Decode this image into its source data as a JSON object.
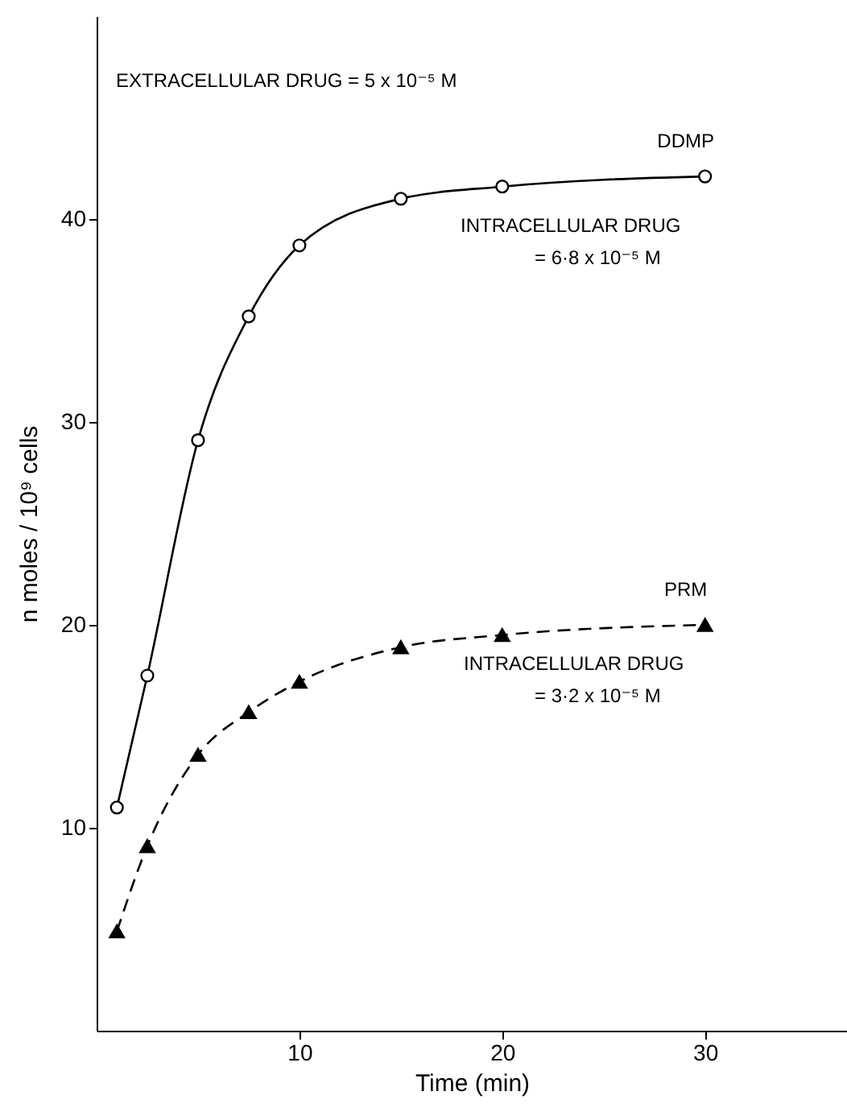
{
  "chart_data": {
    "type": "line",
    "xlabel": "Time  (min)",
    "ylabel": "n moles / 10⁹ cells",
    "xlim": [
      0,
      37
    ],
    "ylim": [
      0,
      50
    ],
    "xticks": [
      10,
      20,
      30
    ],
    "yticks": [
      10,
      20,
      30,
      40
    ],
    "grid": false,
    "series": [
      {
        "name": "DDMP",
        "color": "#000000",
        "marker": "circle",
        "line_style": "solid",
        "x": [
          1,
          2.5,
          5,
          7.5,
          10,
          15,
          20,
          30
        ],
        "values": [
          11.0,
          17.5,
          29.1,
          35.2,
          38.7,
          41.0,
          41.6,
          42.1
        ]
      },
      {
        "name": "PRM",
        "color": "#000000",
        "marker": "triangle",
        "line_style": "dashed",
        "x": [
          1,
          2.5,
          5,
          7.5,
          10,
          15,
          20,
          30
        ],
        "values": [
          4.9,
          9.1,
          13.6,
          15.7,
          17.2,
          18.9,
          19.5,
          20.0
        ]
      }
    ],
    "annotations": [
      "EXTRACELLULAR DRUG  = 5 x 10⁻⁵ M",
      "INTRACELLULAR DRUG",
      "= 6·8 x 10⁻⁵ M",
      "INTRACELLULAR DRUG",
      "= 3·2 x 10⁻⁵ M"
    ]
  }
}
